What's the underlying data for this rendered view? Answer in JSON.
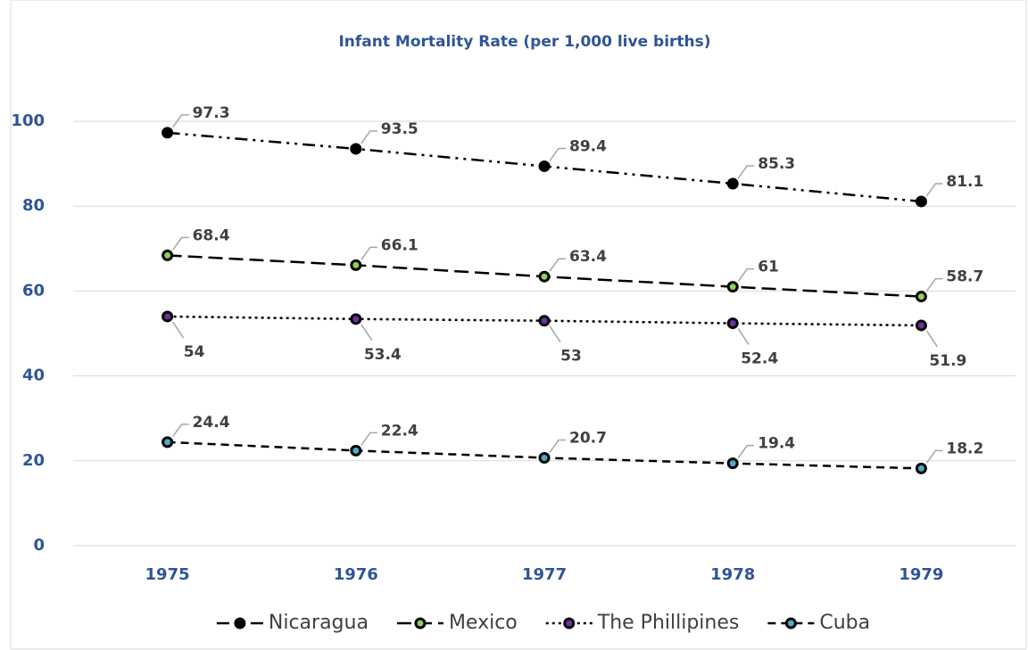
{
  "chart_data": {
    "type": "line",
    "title": "Infant Mortality Rate (per 1,000 live births)",
    "categories": [
      "1975",
      "1976",
      "1977",
      "1978",
      "1979"
    ],
    "series": [
      {
        "name": "Nicaragua",
        "color": "#000000",
        "line_color": "#000000",
        "dash": "dash-dot-dot",
        "label_position": "above",
        "values": [
          97.3,
          93.5,
          89.4,
          85.3,
          81.1
        ]
      },
      {
        "name": "Mexico",
        "color": "#92d050",
        "line_color": "#000000",
        "dash": "long-dash",
        "label_position": "above",
        "values": [
          68.4,
          66.1,
          63.4,
          61,
          58.7
        ]
      },
      {
        "name": "The Phillipines",
        "color": "#7030a0",
        "line_color": "#000000",
        "dash": "dot",
        "label_position": "below",
        "values": [
          54,
          53.4,
          53,
          52.4,
          51.9
        ]
      },
      {
        "name": "Cuba",
        "color": "#4bacc6",
        "line_color": "#000000",
        "dash": "dash",
        "label_position": "above",
        "values": [
          24.4,
          22.4,
          20.7,
          19.4,
          18.2
        ]
      }
    ],
    "ylim": [
      0,
      100
    ],
    "yticks": [
      0,
      20,
      40,
      60,
      80,
      100
    ],
    "grid": true,
    "legend": "bottom"
  }
}
